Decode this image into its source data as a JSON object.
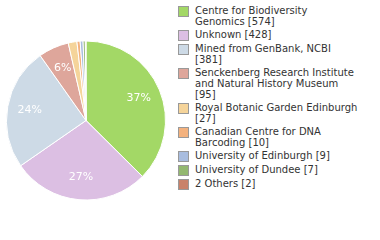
{
  "chart_data": {
    "type": "pie",
    "categories": [
      "Centre for Biodiversity Genomics [574]",
      "Unknown [428]",
      "Mined from GenBank, NCBI [381]",
      "Senckenberg Research Institute and Natural History Museum [95]",
      "Royal Botanic Garden Edinburgh [27]",
      "Canadian Centre for DNA Barcoding [10]",
      "University of Edinburgh [9]",
      "University of Dundee [7]",
      "2 Others [2]"
    ],
    "values": [
      574,
      428,
      381,
      95,
      27,
      10,
      9,
      7,
      2
    ],
    "percent_labels": [
      "37%",
      "27%",
      "24%",
      "6%",
      null,
      null,
      null,
      null,
      null
    ],
    "colors": [
      "#a3d866",
      "#dcbfe3",
      "#cddae6",
      "#dea69b",
      "#f5d49a",
      "#f4b27e",
      "#a9bddf",
      "#93b870",
      "#c9826a"
    ],
    "legend": "right",
    "data_labels": true
  }
}
